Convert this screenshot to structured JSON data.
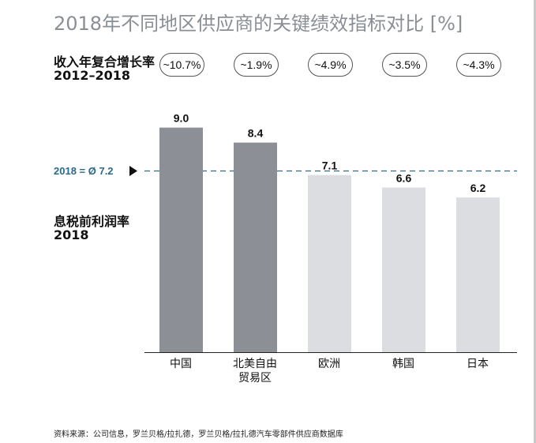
{
  "title": "2018年不同地区供应商的关键绩效指标对比 [%]",
  "growth_label": {
    "line1": "收入年复合增长率",
    "period": "2012–2018"
  },
  "ebit_label": {
    "line1": "息税前利润率",
    "period": "2018"
  },
  "average_label": "2018 = Ø 7.2",
  "source": "资料来源：公司信息，罗兰贝格/拉扎德，罗兰贝格/拉扎德汽车零部件供应商数据库",
  "colors": {
    "dark_bar": "#8c9096",
    "light_bar": "#dcdde0",
    "average_line": "#2a6a8a",
    "title": "#8a8f95"
  },
  "chart_data": {
    "type": "bar",
    "categories": [
      "中国",
      "北美自由贸易区",
      "欧洲",
      "韩国",
      "日本"
    ],
    "category_lines": [
      [
        "中国"
      ],
      [
        "北美自由",
        "贸易区"
      ],
      [
        "欧洲"
      ],
      [
        "韩国"
      ],
      [
        "日本"
      ]
    ],
    "values": [
      9.0,
      8.4,
      7.1,
      6.6,
      6.2
    ],
    "value_labels": [
      "9.0",
      "8.4",
      "7.1",
      "6.6",
      "6.2"
    ],
    "growth_rates": [
      "~10.7%",
      "~1.9%",
      "~4.9%",
      "~3.5%",
      "~4.3%"
    ],
    "average": 7.2,
    "above_average": [
      true,
      true,
      false,
      false,
      false
    ],
    "ylim": [
      0,
      10
    ]
  }
}
